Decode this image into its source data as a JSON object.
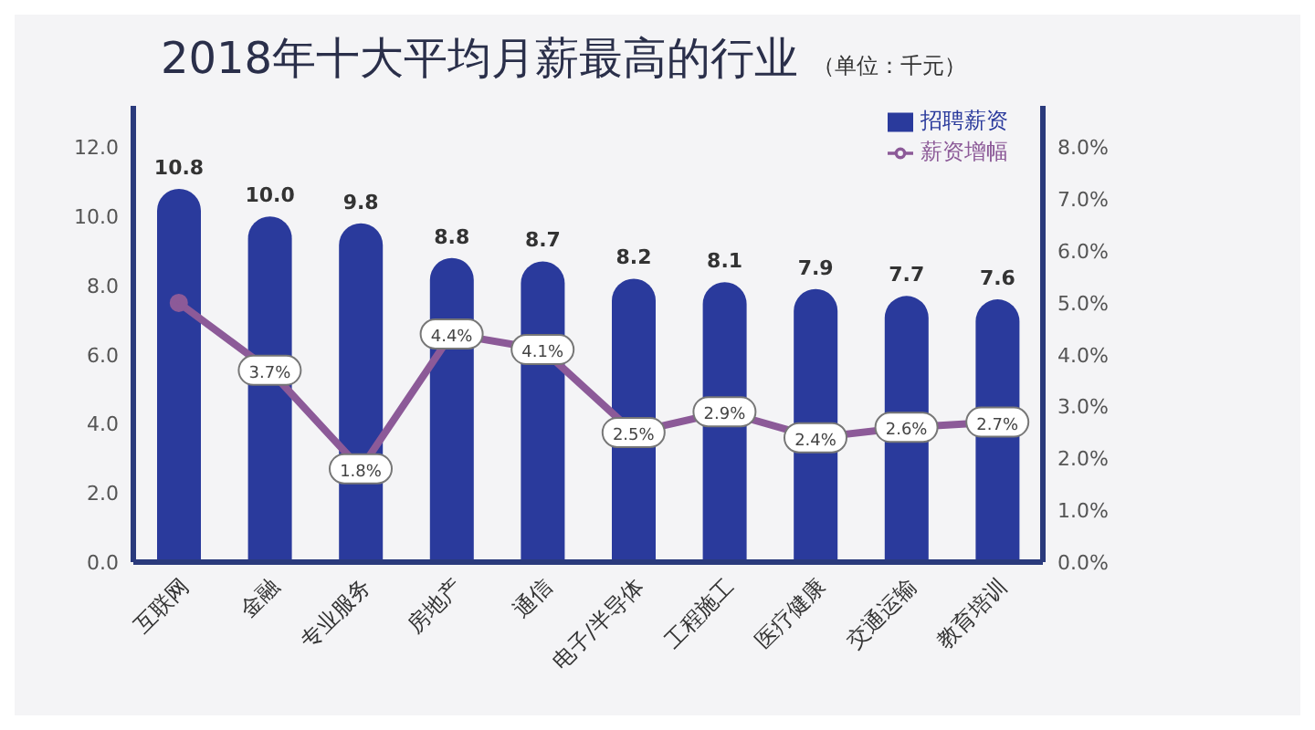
{
  "chart_data": {
    "type": "bar",
    "title": "2018年十大平均月薪最高的行业",
    "annotations": [
      "（单位：千元）"
    ],
    "categories": [
      "互联网",
      "金融",
      "专业服务",
      "房地产",
      "通信",
      "电子/半导体",
      "工程施工",
      "医疗健康",
      "交通运输",
      "教育培训"
    ],
    "series": [
      {
        "name": "招聘薪资",
        "color": "#2a3a9c",
        "values": [
          10.8,
          10.0,
          9.8,
          8.8,
          8.7,
          8.2,
          8.1,
          7.9,
          7.7,
          7.6
        ],
        "value_labels": [
          "10.8",
          "10.0",
          "9.8",
          "8.8",
          "8.7",
          "8.2",
          "8.1",
          "7.9",
          "7.7",
          "7.6"
        ]
      },
      {
        "name": "薪资增幅",
        "type": "line",
        "axis": "y2",
        "color": "#8c5a98",
        "values": [
          5.0,
          3.7,
          1.8,
          4.4,
          4.1,
          2.5,
          2.9,
          2.4,
          2.6,
          2.7
        ],
        "value_labels": [
          null,
          "3.7%",
          "1.8%",
          "4.4%",
          "4.1%",
          "2.5%",
          "2.9%",
          "2.4%",
          "2.6%",
          "2.7%"
        ]
      }
    ],
    "ylim": [
      0,
      13.2
    ],
    "yticks": [
      {
        "value": 0,
        "label": "0.0"
      },
      {
        "value": 2,
        "label": "2.0"
      },
      {
        "value": 4,
        "label": "4.0"
      },
      {
        "value": 6,
        "label": "6.0"
      },
      {
        "value": 8,
        "label": "8.0"
      },
      {
        "value": 10,
        "label": "10.0"
      },
      {
        "value": 12,
        "label": "12.0"
      }
    ],
    "y2lim": [
      0,
      8.8
    ],
    "y2ticks": [
      {
        "value": 0,
        "label": "0.0%"
      },
      {
        "value": 1,
        "label": "1.0%"
      },
      {
        "value": 2,
        "label": "2.0%"
      },
      {
        "value": 3,
        "label": "3.0%"
      },
      {
        "value": 4,
        "label": "4.0%"
      },
      {
        "value": 5,
        "label": "5.0%"
      },
      {
        "value": 6,
        "label": "6.0%"
      },
      {
        "value": 7,
        "label": "7.0%"
      },
      {
        "value": 8,
        "label": "8.0%"
      }
    ],
    "grid": false,
    "legend": "top right",
    "marker": "circle",
    "line_style": "solid"
  }
}
